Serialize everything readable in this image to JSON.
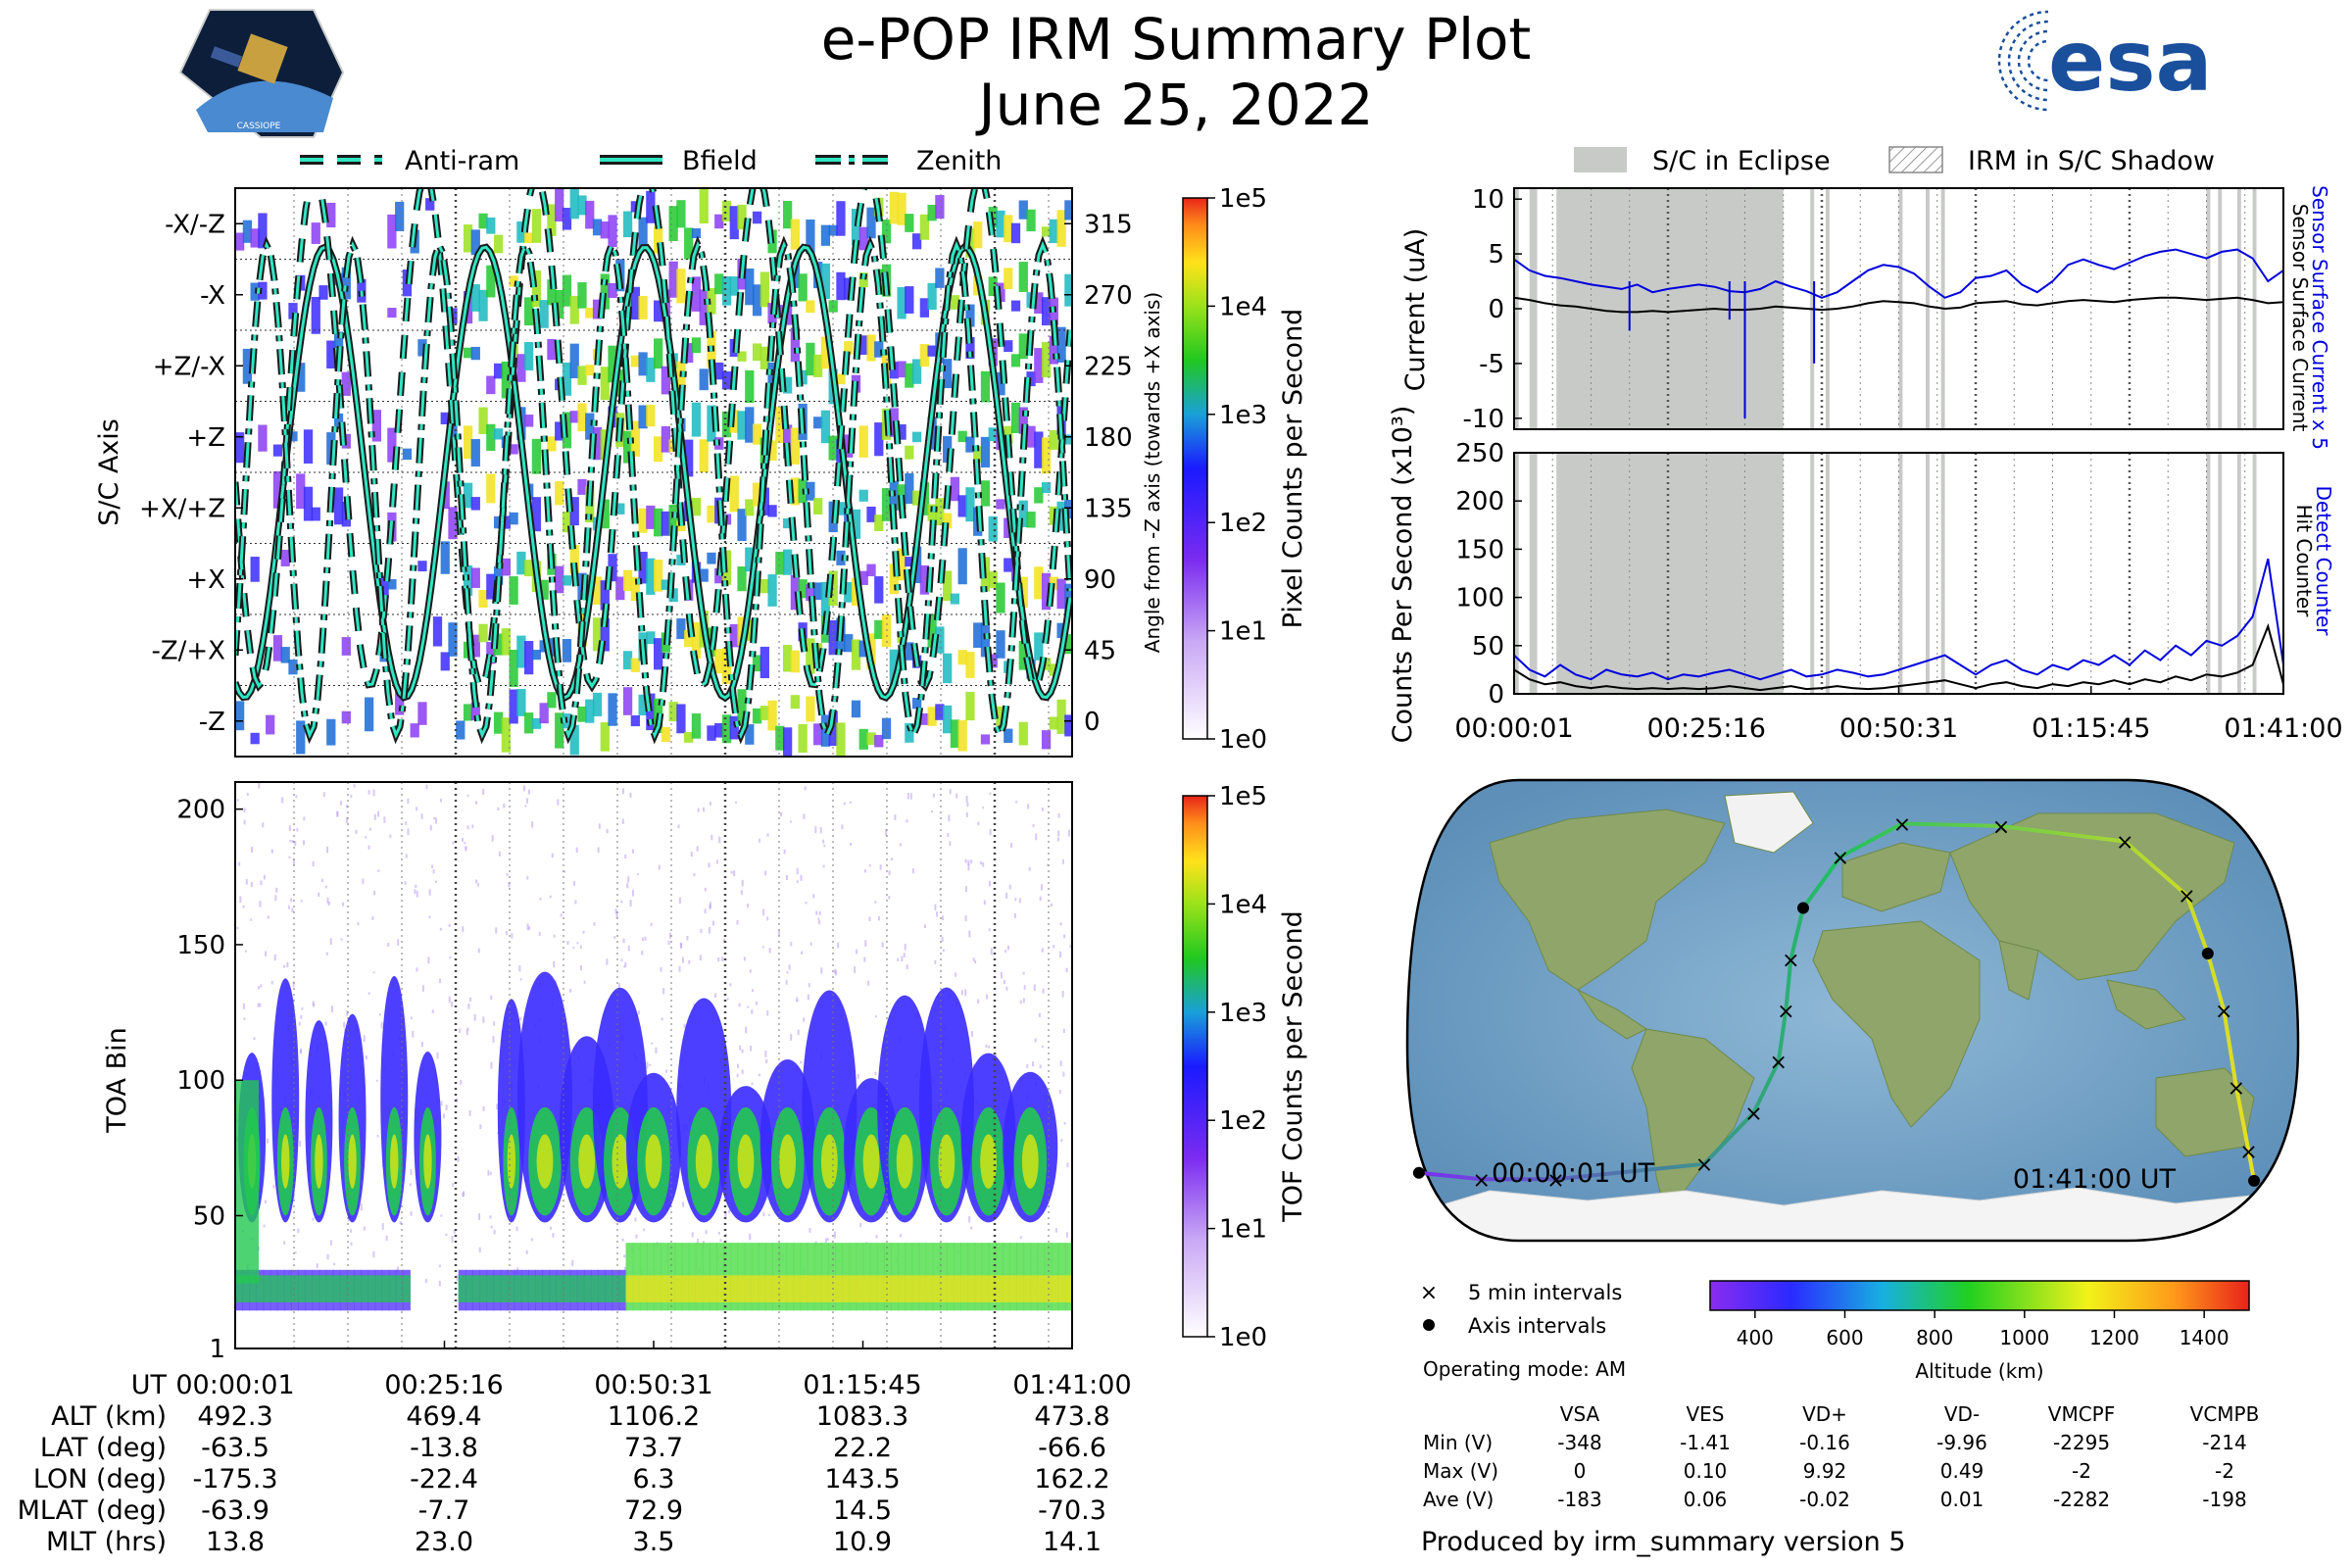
{
  "title": "e-POP IRM Summary Plot",
  "date": "June 25, 2022",
  "logos": {
    "cassiope": "CASSIOPE",
    "esa": "esa"
  },
  "legends": {
    "direction": [
      "Anti-ram",
      "Bfield",
      "Zenith"
    ],
    "shadow": [
      "S/C in Eclipse",
      "IRM in S/C Shadow"
    ]
  },
  "colors": {
    "accent_cyan": "#2fe6c3",
    "blue": "#0000dd",
    "eclipse_gray": "#c8cac8"
  },
  "time_ticks": [
    "00:00:01",
    "00:25:16",
    "00:50:31",
    "01:15:45",
    "01:41:00"
  ],
  "chart_data": [
    {
      "type": "heatmap",
      "name": "pixel-spectrogram",
      "ylabel": "S/C Axis",
      "yticklabels": [
        "-X/-Z",
        "-X",
        "+Z/-X",
        "+Z",
        "+X/+Z",
        "+X",
        "-Z/+X",
        "-Z"
      ],
      "right_ylabel": "Angle from -Z axis (towards +X axis)",
      "right_yticks": [
        315,
        270,
        225,
        180,
        135,
        90,
        45,
        0
      ],
      "colorbar_label": "Pixel Counts per Second",
      "colorbar_ticks": [
        "1e5",
        "1e4",
        "1e3",
        "1e2",
        "1e1",
        "1e0"
      ]
    },
    {
      "type": "heatmap",
      "name": "tof-spectrogram",
      "ylabel": "TOA Bin",
      "yticks": [
        1,
        50,
        100,
        150,
        200
      ],
      "ylim": [
        1,
        210
      ],
      "colorbar_label": "TOF Counts per Second",
      "colorbar_ticks": [
        "1e5",
        "1e4",
        "1e3",
        "1e2",
        "1e1",
        "1e0"
      ]
    },
    {
      "type": "line",
      "name": "current",
      "ylabel": "Current (uA)",
      "yticks": [
        10,
        5,
        0,
        -5,
        -10
      ],
      "ylim": [
        -11,
        11
      ],
      "series": [
        {
          "name": "Sensor Surface Current x 5",
          "color": "#0000dd",
          "values": [
            4.5,
            3.5,
            3.0,
            2.8,
            2.5,
            2.2,
            2.0,
            1.8,
            2.2,
            1.5,
            1.8,
            2.0,
            2.2,
            2.0,
            1.6,
            1.5,
            1.8,
            2.5,
            2.0,
            1.6,
            1.0,
            1.5,
            2.5,
            3.5,
            4.0,
            3.8,
            3.2,
            2.0,
            1.0,
            1.5,
            2.8,
            3.0,
            3.5,
            2.2,
            1.5,
            2.5,
            4.0,
            4.5,
            4.0,
            3.6,
            4.2,
            4.8,
            5.2,
            5.4,
            5.0,
            4.6,
            5.2,
            5.4,
            4.6,
            2.5,
            3.5
          ]
        },
        {
          "name": "Sensor Surface Current",
          "color": "#000000",
          "values": [
            1.0,
            0.8,
            0.5,
            0.3,
            0.2,
            0.0,
            -0.2,
            -0.3,
            -0.3,
            -0.2,
            -0.3,
            -0.2,
            -0.1,
            0.0,
            -0.1,
            -0.1,
            0.0,
            0.2,
            0.1,
            0.0,
            -0.1,
            0.0,
            0.2,
            0.5,
            0.7,
            0.6,
            0.5,
            0.2,
            0.0,
            0.1,
            0.5,
            0.6,
            0.7,
            0.4,
            0.3,
            0.5,
            0.7,
            0.8,
            0.7,
            0.6,
            0.8,
            0.9,
            1.0,
            1.0,
            0.9,
            0.8,
            0.9,
            1.0,
            0.8,
            0.5,
            0.6
          ]
        }
      ]
    },
    {
      "type": "line",
      "name": "counts",
      "ylabel": "Counts Per Second (x10³)",
      "yticks": [
        0,
        50,
        100,
        150,
        200,
        250
      ],
      "ylim": [
        0,
        250
      ],
      "series": [
        {
          "name": "Detect Counter",
          "color": "#0000dd",
          "values": [
            40,
            25,
            18,
            30,
            20,
            15,
            25,
            20,
            18,
            22,
            15,
            20,
            18,
            22,
            25,
            20,
            15,
            20,
            25,
            18,
            20,
            25,
            22,
            18,
            20,
            25,
            30,
            35,
            40,
            30,
            20,
            30,
            35,
            25,
            20,
            30,
            25,
            35,
            30,
            40,
            30,
            45,
            35,
            50,
            40,
            55,
            50,
            60,
            80,
            140,
            30
          ]
        },
        {
          "name": "Hit Counter",
          "color": "#000000",
          "values": [
            25,
            15,
            10,
            12,
            8,
            6,
            8,
            6,
            5,
            6,
            5,
            6,
            5,
            6,
            8,
            6,
            4,
            6,
            8,
            5,
            6,
            8,
            6,
            5,
            6,
            8,
            10,
            12,
            14,
            10,
            6,
            10,
            12,
            8,
            6,
            10,
            8,
            12,
            10,
            14,
            10,
            15,
            12,
            18,
            14,
            20,
            18,
            22,
            30,
            70,
            10
          ]
        }
      ]
    },
    {
      "type": "scatter",
      "name": "orbit-map",
      "start_label": "00:00:01 UT",
      "end_label": "01:41:00 UT",
      "legend": [
        "5 min intervals",
        "Axis intervals"
      ],
      "colorbar_label": "Altitude (km)",
      "colorbar_ticks": [
        400,
        600,
        800,
        1000,
        1200,
        1400
      ],
      "crange": [
        300,
        1500
      ],
      "track": [
        [
          -175.3,
          -63.5
        ],
        [
          -150,
          -66
        ],
        [
          -120,
          -66
        ],
        [
          -60,
          -60
        ],
        [
          -40,
          -40
        ],
        [
          -30,
          -20
        ],
        [
          -27,
          0
        ],
        [
          -25,
          20
        ],
        [
          -20,
          40
        ],
        [
          -5,
          60
        ],
        [
          20,
          73
        ],
        [
          60,
          72
        ],
        [
          110,
          66
        ],
        [
          135,
          45
        ],
        [
          143.5,
          22.2
        ],
        [
          150,
          0
        ],
        [
          155,
          -30
        ],
        [
          160,
          -55
        ],
        [
          162.2,
          -66.6
        ]
      ]
    }
  ],
  "footer": {
    "operating_mode": "Operating mode: AM",
    "produced_by": "Produced by irm_summary version 5"
  },
  "info_table": {
    "row_labels": [
      "UT",
      "ALT (km)",
      "LAT (deg)",
      "LON (deg)",
      "MLAT (deg)",
      "MLT (hrs)"
    ],
    "columns": [
      [
        "00:00:01",
        "492.3",
        "-63.5",
        "-175.3",
        "-63.9",
        "13.8"
      ],
      [
        "00:25:16",
        "469.4",
        "-13.8",
        "-22.4",
        "-7.7",
        "23.0"
      ],
      [
        "00:50:31",
        "1106.2",
        "73.7",
        "6.3",
        "72.9",
        "3.5"
      ],
      [
        "01:15:45",
        "1083.3",
        "22.2",
        "143.5",
        "14.5",
        "10.9"
      ],
      [
        "01:41:00",
        "473.8",
        "-66.6",
        "162.2",
        "-70.3",
        "14.1"
      ]
    ]
  },
  "voltage_table": {
    "headers": [
      "VSA",
      "VES",
      "VD+",
      "VD-",
      "VMCPF",
      "VCMPB"
    ],
    "rows": [
      {
        "label": "Min (V)",
        "values": [
          "-348",
          "-1.41",
          "-0.16",
          "-9.96",
          "-2295",
          "-214"
        ]
      },
      {
        "label": "Max (V)",
        "values": [
          "0",
          "0.10",
          "9.92",
          "0.49",
          "-2",
          "-2"
        ]
      },
      {
        "label": "Ave (V)",
        "values": [
          "-183",
          "0.06",
          "-0.02",
          "0.01",
          "-2282",
          "-198"
        ]
      }
    ]
  }
}
